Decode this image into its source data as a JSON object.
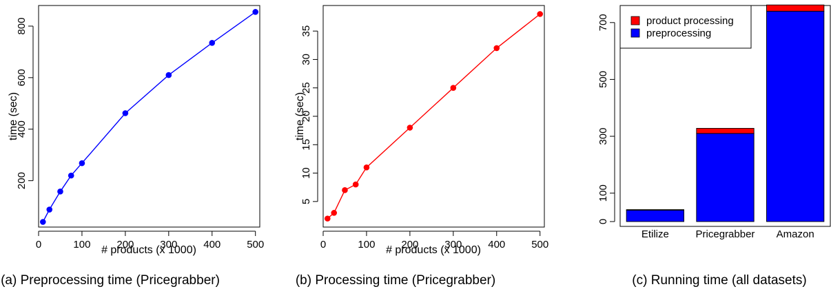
{
  "chart_data": [
    {
      "type": "line",
      "caption": "(a) Preprocessing time (Pricegrabber)",
      "title": "",
      "xlabel": "# products (x 1000)",
      "ylabel": "time (sec)",
      "xlim": [
        0,
        510
      ],
      "ylim": [
        20,
        880
      ],
      "xticks": [
        0,
        100,
        200,
        300,
        400,
        500
      ],
      "yticks": [
        200,
        400,
        600,
        800
      ],
      "grid": false,
      "color": "#0000ff",
      "series": [
        {
          "x": [
            10,
            25,
            50,
            75,
            100,
            200,
            300,
            400,
            500
          ],
          "y": [
            40,
            88,
            158,
            220,
            268,
            462,
            610,
            735,
            855
          ]
        }
      ]
    },
    {
      "type": "line",
      "caption": "(b) Processing time (Pricegrabber)",
      "title": "",
      "xlabel": "# products (x 1000)",
      "ylabel": "time (sec)",
      "xlim": [
        0,
        510
      ],
      "ylim": [
        0.5,
        39.5
      ],
      "xticks": [
        0,
        100,
        200,
        300,
        400,
        500
      ],
      "yticks": [
        5,
        10,
        15,
        20,
        25,
        30,
        35
      ],
      "grid": false,
      "color": "#ff0000",
      "series": [
        {
          "x": [
            10,
            25,
            50,
            75,
            100,
            200,
            300,
            400,
            500
          ],
          "y": [
            2,
            3,
            7,
            8,
            11,
            18,
            25,
            32,
            38
          ]
        }
      ]
    },
    {
      "type": "bar",
      "stacked": true,
      "caption": "(c) Running time (all datasets)",
      "title": "",
      "xlabel": "",
      "ylabel": "",
      "ylim": [
        0,
        760
      ],
      "yticks": [
        0,
        100,
        300,
        500,
        700
      ],
      "categories": [
        "Etilize",
        "Pricegrabber",
        "Amazon"
      ],
      "legend_position": "top-left",
      "series": [
        {
          "name": "preprocessing",
          "color": "#0000ff",
          "values": [
            40,
            310,
            740
          ]
        },
        {
          "name": "product processing",
          "color": "#ff0000",
          "values": [
            2,
            18,
            22
          ]
        }
      ]
    }
  ]
}
